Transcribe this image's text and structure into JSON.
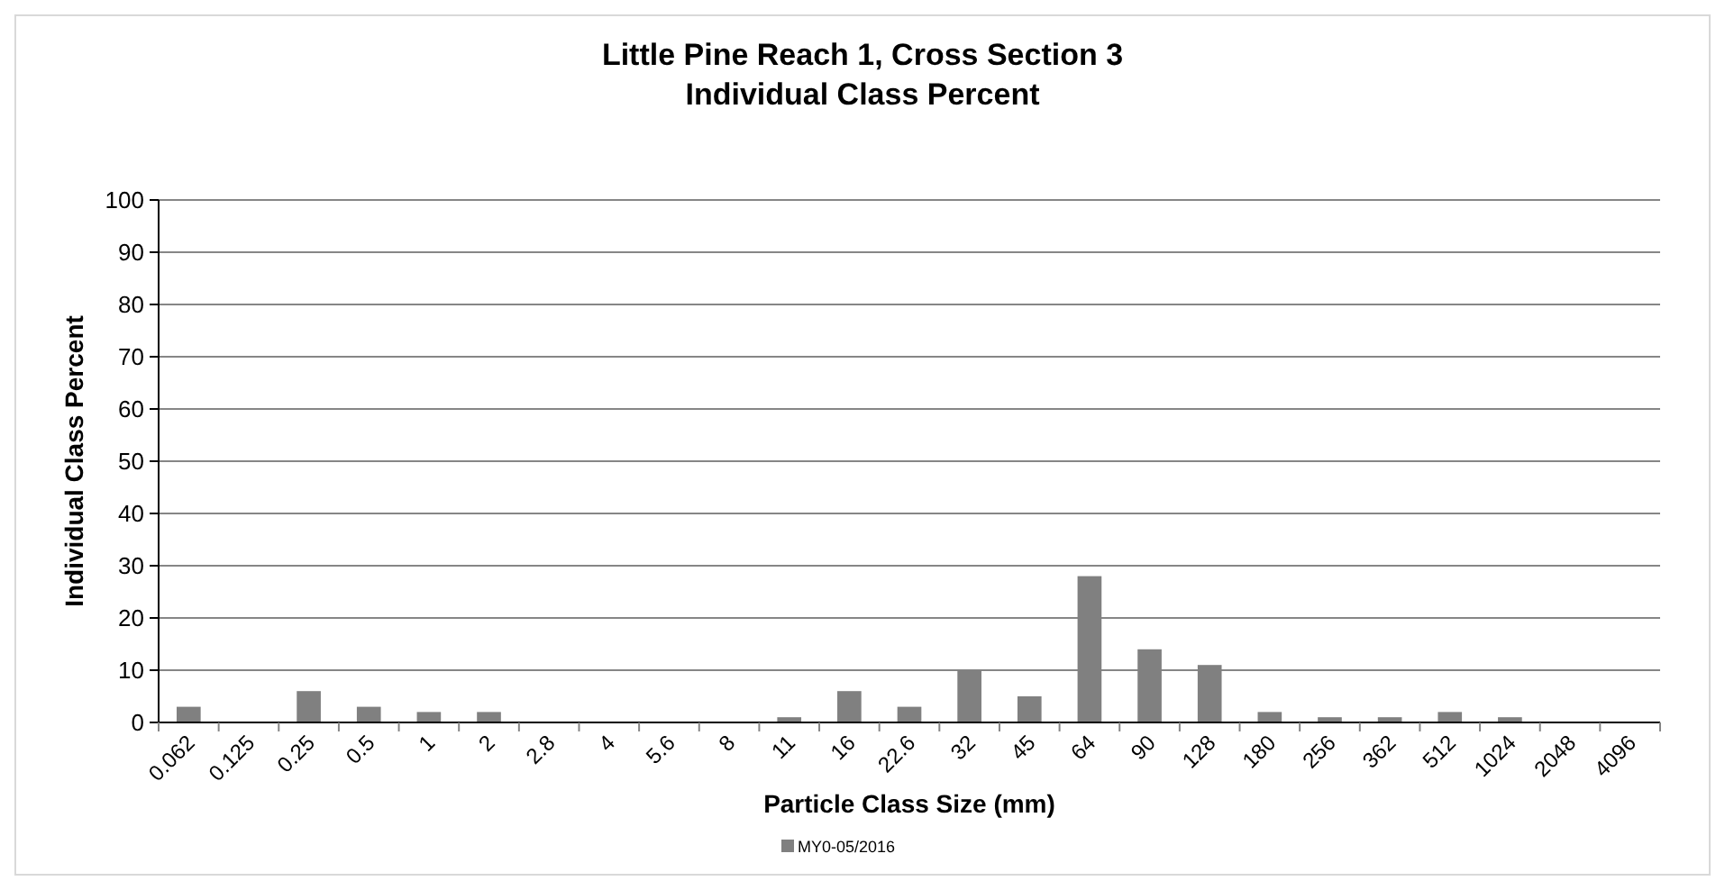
{
  "chart_data": {
    "type": "bar",
    "title": "Little Pine Reach 1, Cross Section 3\nIndividual Class Percent",
    "xlabel": "Particle Class Size (mm)",
    "ylabel": "Individual Class Percent",
    "categories": [
      "0.062",
      "0.125",
      "0.25",
      "0.5",
      "1",
      "2",
      "2.8",
      "4",
      "5.6",
      "8",
      "11",
      "16",
      "22.6",
      "32",
      "45",
      "64",
      "90",
      "128",
      "180",
      "256",
      "362",
      "512",
      "1024",
      "2048",
      "4096"
    ],
    "series": [
      {
        "name": "MY0-05/2016",
        "color": "#808080",
        "values": [
          3,
          0,
          6,
          3,
          2,
          2,
          0,
          0,
          0,
          0,
          1,
          6,
          3,
          10,
          5,
          28,
          14,
          11,
          2,
          1,
          1,
          2,
          1,
          0,
          0
        ]
      }
    ],
    "ylim": [
      0,
      100
    ],
    "yticks": [
      0,
      10,
      20,
      30,
      40,
      50,
      60,
      70,
      80,
      90,
      100
    ],
    "grid": "y",
    "legend": "bottom"
  }
}
